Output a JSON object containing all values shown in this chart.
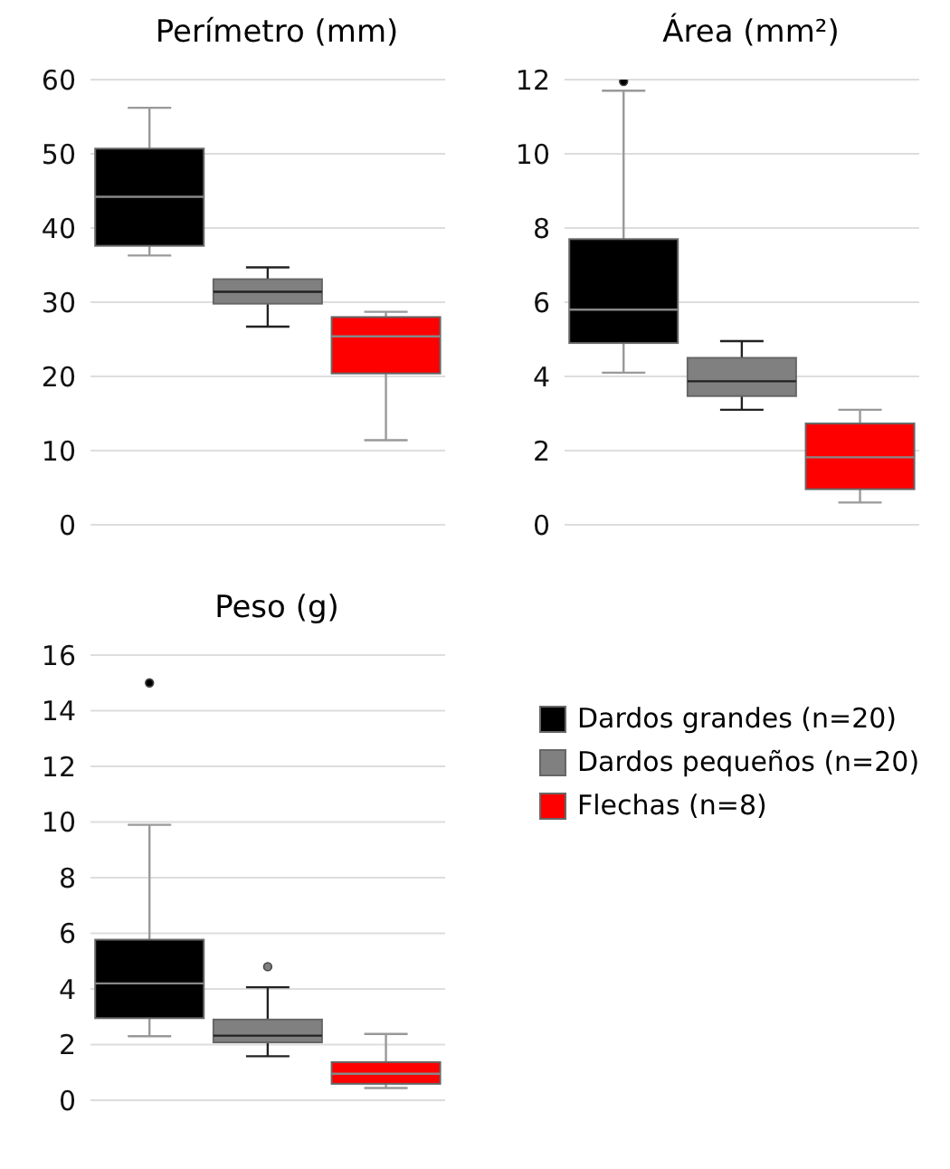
{
  "chart_data": [
    {
      "type": "box",
      "title": "Perímetro (mm)",
      "categories": [
        null,
        null,
        null
      ],
      "ylim": [
        0,
        60
      ],
      "yticks": [
        0,
        10,
        20,
        30,
        40,
        50,
        60
      ],
      "grid": "y",
      "series": [
        {
          "color": "#000000",
          "boxes": [
            {
              "low": 36.3,
              "q1": 37.6,
              "median": 44.2,
              "q3": 50.7,
              "high": 56.2
            },
            null,
            null
          ]
        },
        {
          "color": "#808080",
          "boxes": [
            null,
            {
              "low": 26.7,
              "q1": 29.8,
              "median": 31.4,
              "q3": 33.1,
              "high": 34.7
            },
            null
          ]
        },
        {
          "color": "#ff0000",
          "boxes": [
            null,
            null,
            {
              "low": 11.4,
              "q1": 20.4,
              "median": 25.4,
              "q3": 28.0,
              "high": 28.7
            }
          ]
        }
      ]
    },
    {
      "type": "box",
      "title": "Área (mm²)",
      "categories": [
        null,
        null,
        null
      ],
      "ylim": [
        0,
        12
      ],
      "yticks": [
        0,
        2,
        4,
        6,
        8,
        10,
        12
      ],
      "grid": "y",
      "series": [
        {
          "color": "#000000",
          "boxes": [
            {
              "low": 4.1,
              "q1": 4.9,
              "median": 5.8,
              "q3": 7.7,
              "high": 11.7,
              "outliers": [
                11.95
              ]
            },
            null,
            null
          ]
        },
        {
          "color": "#808080",
          "boxes": [
            null,
            {
              "low": 3.1,
              "q1": 3.47,
              "median": 3.87,
              "q3": 4.5,
              "high": 4.95
            },
            null
          ]
        },
        {
          "color": "#ff0000",
          "boxes": [
            null,
            null,
            {
              "low": 0.6,
              "q1": 0.96,
              "median": 1.82,
              "q3": 2.73,
              "high": 3.1
            }
          ]
        }
      ]
    },
    {
      "type": "box",
      "title": "Peso (g)",
      "categories": [
        null,
        null,
        null
      ],
      "ylim": [
        0,
        16
      ],
      "yticks": [
        0,
        2,
        4,
        6,
        8,
        10,
        12,
        14,
        16
      ],
      "grid": "y",
      "legend": "right",
      "series": [
        {
          "name": "Dardos grandes (n=20)",
          "color": "#000000",
          "boxes": [
            {
              "low": 2.3,
              "q1": 2.95,
              "median": 4.2,
              "q3": 5.77,
              "high": 9.9,
              "outliers": [
                15
              ]
            },
            null,
            null
          ]
        },
        {
          "name": "Dardos pequeños (n=20)",
          "color": "#808080",
          "boxes": [
            null,
            {
              "low": 1.58,
              "q1": 2.08,
              "median": 2.32,
              "q3": 2.9,
              "high": 4.06,
              "outliers": [
                4.8
              ]
            },
            null
          ]
        },
        {
          "name": "Flechas (n=8)",
          "color": "#ff0000",
          "boxes": [
            null,
            null,
            {
              "low": 0.44,
              "q1": 0.59,
              "median": 0.95,
              "q3": 1.37,
              "high": 2.38
            }
          ]
        }
      ]
    }
  ]
}
